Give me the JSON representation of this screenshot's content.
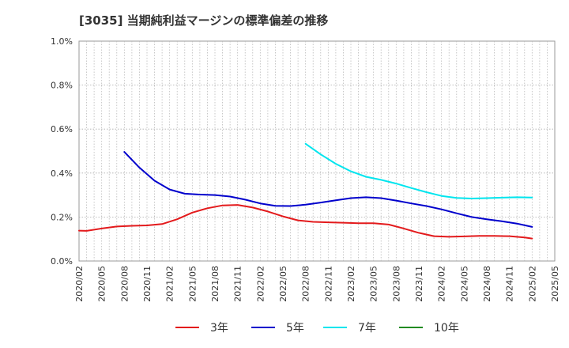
{
  "chart_data": {
    "type": "line",
    "title": "[3035]  当期純利益マージンの標準偏差の推移",
    "xlabel": "",
    "ylabel": "",
    "ylim": [
      0,
      1.0
    ],
    "yticks": [
      "0.0%",
      "0.2%",
      "0.4%",
      "0.6%",
      "0.8%",
      "1.0%"
    ],
    "xticks": [
      "2020/02",
      "2020/05",
      "2020/08",
      "2020/11",
      "2021/02",
      "2021/05",
      "2021/08",
      "2021/11",
      "2022/02",
      "2022/05",
      "2022/08",
      "2022/11",
      "2023/02",
      "2023/05",
      "2023/08",
      "2023/11",
      "2024/02",
      "2024/05",
      "2024/08",
      "2024/11",
      "2025/02",
      "2025/05"
    ],
    "grid": true,
    "legend_position": "bottom",
    "series": [
      {
        "name": "3年",
        "color": "#e31a1c",
        "points": [
          [
            "2020/02",
            0.138
          ],
          [
            "2020/03",
            0.137
          ],
          [
            "2020/05",
            0.148
          ],
          [
            "2020/07",
            0.157
          ],
          [
            "2020/09",
            0.16
          ],
          [
            "2020/11",
            0.162
          ],
          [
            "2021/01",
            0.168
          ],
          [
            "2021/03",
            0.19
          ],
          [
            "2021/05",
            0.22
          ],
          [
            "2021/07",
            0.24
          ],
          [
            "2021/09",
            0.253
          ],
          [
            "2021/11",
            0.255
          ],
          [
            "2022/01",
            0.243
          ],
          [
            "2022/03",
            0.225
          ],
          [
            "2022/05",
            0.203
          ],
          [
            "2022/07",
            0.185
          ],
          [
            "2022/09",
            0.178
          ],
          [
            "2022/11",
            0.176
          ],
          [
            "2023/01",
            0.174
          ],
          [
            "2023/03",
            0.172
          ],
          [
            "2023/05",
            0.172
          ],
          [
            "2023/07",
            0.166
          ],
          [
            "2023/09",
            0.148
          ],
          [
            "2023/11",
            0.128
          ],
          [
            "2024/01",
            0.113
          ],
          [
            "2024/03",
            0.11
          ],
          [
            "2024/05",
            0.112
          ],
          [
            "2024/07",
            0.114
          ],
          [
            "2024/09",
            0.114
          ],
          [
            "2024/11",
            0.113
          ],
          [
            "2025/01",
            0.107
          ],
          [
            "2025/02",
            0.102
          ]
        ]
      },
      {
        "name": "5年",
        "color": "#0000cc",
        "points": [
          [
            "2020/08",
            0.496
          ],
          [
            "2020/10",
            0.425
          ],
          [
            "2020/12",
            0.365
          ],
          [
            "2021/02",
            0.325
          ],
          [
            "2021/04",
            0.306
          ],
          [
            "2021/06",
            0.302
          ],
          [
            "2021/08",
            0.3
          ],
          [
            "2021/10",
            0.293
          ],
          [
            "2021/12",
            0.279
          ],
          [
            "2022/02",
            0.262
          ],
          [
            "2022/04",
            0.251
          ],
          [
            "2022/06",
            0.25
          ],
          [
            "2022/08",
            0.256
          ],
          [
            "2022/10",
            0.266
          ],
          [
            "2022/12",
            0.276
          ],
          [
            "2023/02",
            0.286
          ],
          [
            "2023/04",
            0.29
          ],
          [
            "2023/06",
            0.286
          ],
          [
            "2023/08",
            0.275
          ],
          [
            "2023/10",
            0.262
          ],
          [
            "2023/12",
            0.25
          ],
          [
            "2024/02",
            0.235
          ],
          [
            "2024/04",
            0.217
          ],
          [
            "2024/06",
            0.2
          ],
          [
            "2024/08",
            0.19
          ],
          [
            "2024/10",
            0.181
          ],
          [
            "2024/12",
            0.17
          ],
          [
            "2025/02",
            0.155
          ]
        ]
      },
      {
        "name": "7年",
        "color": "#00e5ee",
        "points": [
          [
            "2022/08",
            0.533
          ],
          [
            "2022/10",
            0.485
          ],
          [
            "2022/12",
            0.442
          ],
          [
            "2023/02",
            0.408
          ],
          [
            "2023/04",
            0.383
          ],
          [
            "2023/06",
            0.369
          ],
          [
            "2023/08",
            0.352
          ],
          [
            "2023/10",
            0.332
          ],
          [
            "2023/12",
            0.313
          ],
          [
            "2024/02",
            0.296
          ],
          [
            "2024/04",
            0.287
          ],
          [
            "2024/06",
            0.284
          ],
          [
            "2024/08",
            0.286
          ],
          [
            "2024/10",
            0.288
          ],
          [
            "2024/12",
            0.29
          ],
          [
            "2025/02",
            0.289
          ]
        ]
      },
      {
        "name": "10年",
        "color": "#228b22",
        "points": []
      }
    ]
  }
}
